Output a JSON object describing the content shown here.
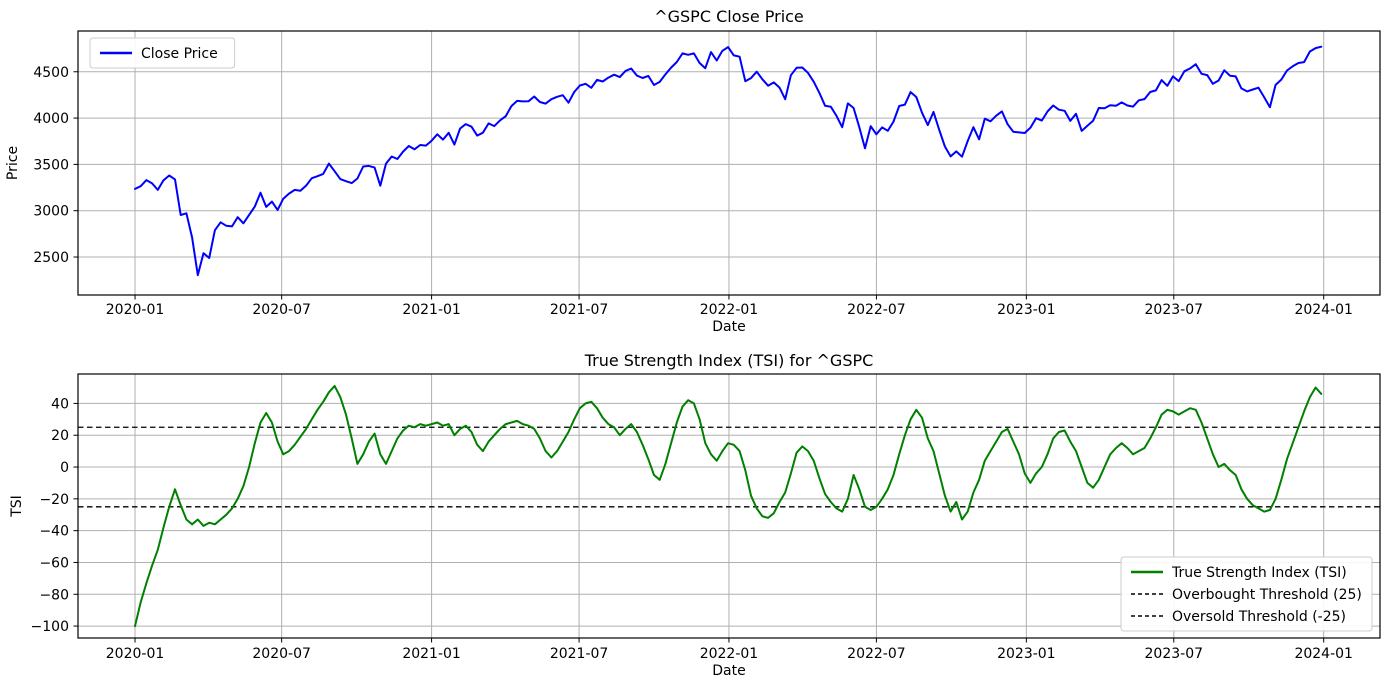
{
  "figure": {
    "background": "#ffffff",
    "grid_color": "#b0b0b0",
    "spine_color": "#000000",
    "legend_border_color": "#cccccc"
  },
  "chart_data": [
    {
      "type": "line",
      "title": "^GSPC Close Price",
      "xlabel": "Date",
      "ylabel": "Price",
      "grid": true,
      "x_start": "2020-01-03",
      "x_step_days": 7,
      "xlim_weeks": [
        -10,
        218.3
      ],
      "ylim": [
        2090,
        4940
      ],
      "x_ticks": [
        {
          "label": "2020-01",
          "week": 0
        },
        {
          "label": "2020-07",
          "week": 25.71
        },
        {
          "label": "2021-01",
          "week": 52.0
        },
        {
          "label": "2021-07",
          "week": 77.86
        },
        {
          "label": "2022-01",
          "week": 104.14
        },
        {
          "label": "2022-07",
          "week": 130.0
        },
        {
          "label": "2023-01",
          "week": 156.29
        },
        {
          "label": "2023-07",
          "week": 182.14
        },
        {
          "label": "2024-01",
          "week": 208.43
        }
      ],
      "y_ticks": [
        2500,
        3000,
        3500,
        4000,
        4500
      ],
      "legend": {
        "position": "upper-left",
        "entries": [
          {
            "label": "Close Price",
            "color": "#0000ff",
            "dashed": false
          }
        ]
      },
      "series": [
        {
          "name": "Close Price",
          "color": "#0000ff",
          "width": 2,
          "dashed": false,
          "values": [
            3235,
            3265,
            3330,
            3295,
            3225,
            3328,
            3380,
            3338,
            2954,
            2972,
            2711,
            2305,
            2541,
            2489,
            2790,
            2875,
            2837,
            2831,
            2930,
            2864,
            2955,
            3044,
            3194,
            3041,
            3098,
            3009,
            3130,
            3185,
            3225,
            3216,
            3271,
            3351,
            3373,
            3397,
            3508,
            3427,
            3341,
            3319,
            3298,
            3348,
            3477,
            3484,
            3465,
            3270,
            3509,
            3585,
            3558,
            3638,
            3699,
            3663,
            3709,
            3703,
            3756,
            3825,
            3768,
            3841,
            3714,
            3887,
            3935,
            3907,
            3811,
            3842,
            3943,
            3913,
            3975,
            4020,
            4129,
            4185,
            4180,
            4181,
            4233,
            4174,
            4156,
            4204,
            4230,
            4247,
            4166,
            4281,
            4352,
            4370,
            4327,
            4412,
            4395,
            4437,
            4468,
            4442,
            4509,
            4535,
            4459,
            4433,
            4455,
            4357,
            4391,
            4471,
            4545,
            4605,
            4698,
            4683,
            4698,
            4595,
            4538,
            4712,
            4621,
            4726,
            4766,
            4677,
            4663,
            4398,
            4432,
            4501,
            4419,
            4349,
            4385,
            4329,
            4204,
            4463,
            4543,
            4546,
            4488,
            4393,
            4272,
            4132,
            4123,
            4024,
            3901,
            4158,
            4109,
            3901,
            3675,
            3912,
            3825,
            3899,
            3863,
            3962,
            4130,
            4145,
            4280,
            4228,
            4058,
            3924,
            4067,
            3873,
            3693,
            3586,
            3640,
            3583,
            3753,
            3901,
            3771,
            3993,
            3965,
            4026,
            4072,
            3934,
            3852,
            3845,
            3839,
            3895,
            3999,
            3973,
            4071,
            4136,
            4090,
            4079,
            3970,
            4046,
            3862,
            3917,
            3971,
            4109,
            4105,
            4138,
            4134,
            4169,
            4136,
            4124,
            4192,
            4205,
            4282,
            4299,
            4410,
            4348,
            4450,
            4399,
            4505,
            4536,
            4582,
            4478,
            4464,
            4370,
            4406,
            4516,
            4457,
            4450,
            4320,
            4288,
            4309,
            4328,
            4224,
            4117,
            4358,
            4415,
            4514,
            4559,
            4595,
            4604,
            4719,
            4755,
            4770
          ]
        }
      ]
    },
    {
      "type": "line",
      "title": "True Strength Index (TSI) for ^GSPC",
      "xlabel": "Date",
      "ylabel": "TSI",
      "grid": true,
      "x_start": "2020-01-03",
      "x_step_days": 7,
      "xlim_weeks": [
        -10,
        218.3
      ],
      "ylim": [
        -107.5,
        58.5
      ],
      "x_ticks": [
        {
          "label": "2020-01",
          "week": 0
        },
        {
          "label": "2020-07",
          "week": 25.71
        },
        {
          "label": "2021-01",
          "week": 52.0
        },
        {
          "label": "2021-07",
          "week": 77.86
        },
        {
          "label": "2022-01",
          "week": 104.14
        },
        {
          "label": "2022-07",
          "week": 130.0
        },
        {
          "label": "2023-01",
          "week": 156.29
        },
        {
          "label": "2023-07",
          "week": 182.14
        },
        {
          "label": "2024-01",
          "week": 208.43
        }
      ],
      "y_ticks": [
        40,
        20,
        0,
        -20,
        -40,
        -60,
        -80,
        -100
      ],
      "thresholds": [
        {
          "name": "overbought",
          "value": 25,
          "color": "#000000"
        },
        {
          "name": "oversold",
          "value": -25,
          "color": "#000000"
        }
      ],
      "legend": {
        "position": "lower-right",
        "entries": [
          {
            "label": "True Strength Index (TSI)",
            "color": "#008000",
            "dashed": false
          },
          {
            "label": "Overbought Threshold (25)",
            "color": "#000000",
            "dashed": true
          },
          {
            "label": "Oversold Threshold (-25)",
            "color": "#000000",
            "dashed": true
          }
        ]
      },
      "series": [
        {
          "name": "True Strength Index (TSI)",
          "color": "#008000",
          "width": 2,
          "dashed": false,
          "values": [
            -100,
            -85,
            -73,
            -62,
            -52,
            -38,
            -25,
            -14,
            -24,
            -33,
            -36,
            -33,
            -37,
            -35,
            -36,
            -33,
            -30,
            -26,
            -20,
            -12,
            0,
            15,
            28,
            34,
            28,
            16,
            8,
            10,
            14,
            19,
            24,
            30,
            36,
            41,
            47,
            51,
            44,
            33,
            18,
            2,
            8,
            16,
            21,
            8,
            2,
            10,
            18,
            23,
            26,
            25,
            27,
            26,
            27,
            28,
            26,
            27,
            20,
            24,
            26,
            22,
            14,
            10,
            16,
            20,
            24,
            27,
            28,
            29,
            27,
            26,
            24,
            18,
            10,
            6,
            10,
            16,
            22,
            30,
            37,
            40,
            41,
            37,
            31,
            27,
            25,
            20,
            24,
            27,
            22,
            14,
            5,
            -5,
            -8,
            2,
            15,
            28,
            38,
            42,
            40,
            30,
            15,
            8,
            4,
            10,
            15,
            14,
            10,
            -2,
            -18,
            -26,
            -31,
            -32,
            -29,
            -22,
            -16,
            -4,
            9,
            13,
            10,
            4,
            -7,
            -17,
            -22,
            -26,
            -28,
            -20,
            -5,
            -14,
            -25,
            -27,
            -25,
            -20,
            -14,
            -5,
            8,
            20,
            30,
            36,
            31,
            18,
            10,
            -4,
            -18,
            -28,
            -22,
            -33,
            -28,
            -16,
            -8,
            4,
            10,
            16,
            22,
            24,
            16,
            8,
            -4,
            -10,
            -4,
            0,
            8,
            18,
            22,
            23,
            16,
            10,
            0,
            -10,
            -13,
            -8,
            0,
            8,
            12,
            15,
            12,
            8,
            10,
            12,
            18,
            25,
            33,
            36,
            35,
            33,
            35,
            37,
            36,
            28,
            18,
            8,
            0,
            2,
            -2,
            -5,
            -14,
            -20,
            -24,
            -26,
            -28,
            -27,
            -20,
            -8,
            5,
            15,
            25,
            35,
            44,
            50,
            46
          ]
        }
      ]
    }
  ]
}
